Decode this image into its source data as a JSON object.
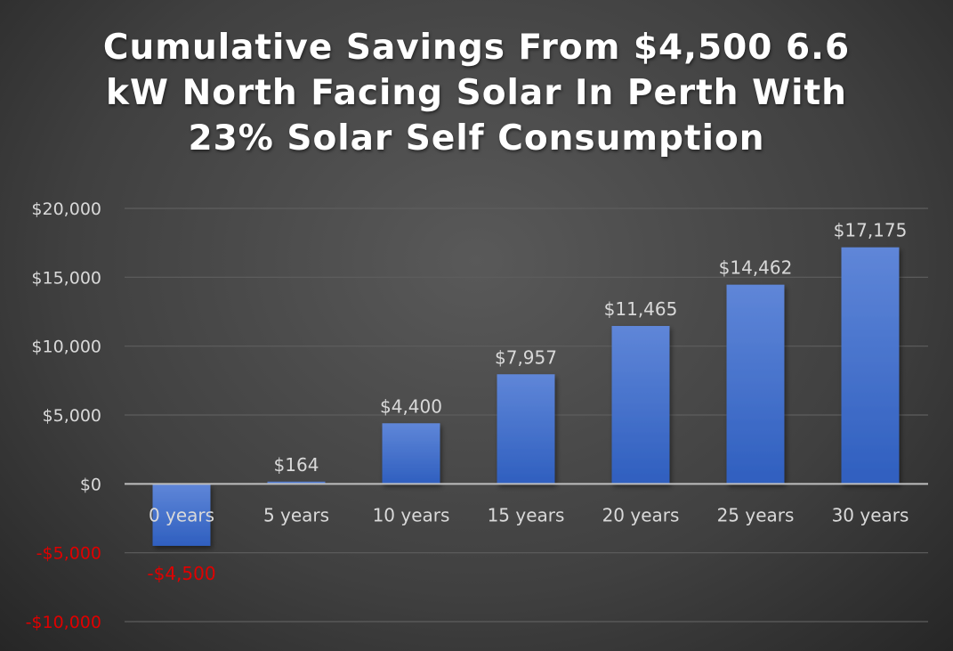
{
  "chart_data": {
    "type": "bar",
    "title_lines": [
      "Cumulative Savings From $4,500 6.6",
      "kW North Facing Solar In Perth With",
      "23% Solar Self Consumption"
    ],
    "categories": [
      "0 years",
      "5 years",
      "10 years",
      "15 years",
      "20 years",
      "25 years",
      "30 years"
    ],
    "values": [
      -4500,
      164,
      4400,
      7957,
      11465,
      14462,
      17175
    ],
    "data_labels": [
      "-$4,500",
      "$164",
      "$4,400",
      "$7,957",
      "$11,465",
      "$14,462",
      "$17,175"
    ],
    "ylim": [
      -10000,
      20000
    ],
    "yticks": [
      20000,
      15000,
      10000,
      5000,
      0,
      -5000,
      -10000
    ],
    "ytick_labels": [
      "$20,000",
      "$15,000",
      "$10,000",
      "$5,000",
      "$0",
      "-$5,000",
      "-$10,000"
    ],
    "grid": true,
    "xlabel": "",
    "ylabel": "",
    "colors": {
      "bar_top": "#5f86d8",
      "bar_bottom": "#2f5fbf",
      "negative_text": "#e00000",
      "text": "#d9d9d9"
    }
  }
}
